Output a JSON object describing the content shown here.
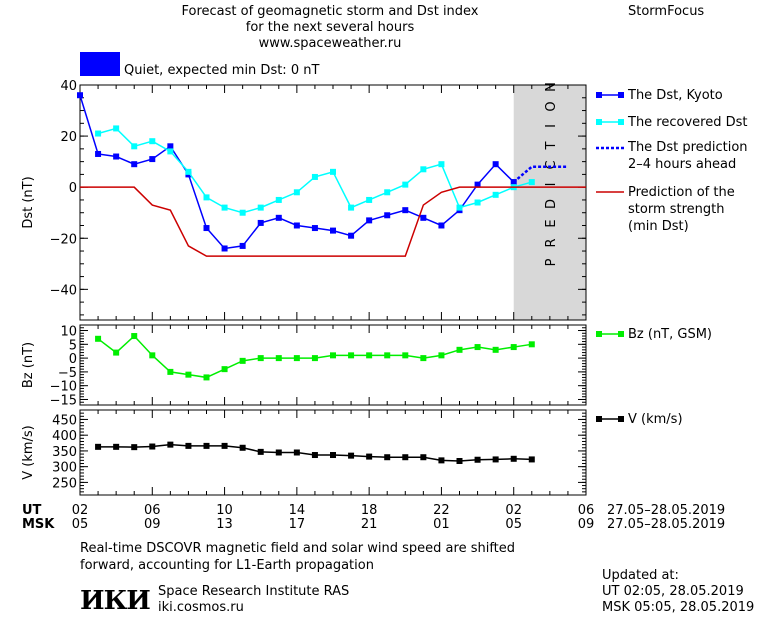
{
  "header": {
    "title_line1": "Forecast of geomagnetic storm and Dst index",
    "title_line2": "for the next several hours",
    "url": "www.spaceweather.ru",
    "brand": "StormFocus",
    "status_label": "Quiet, expected min Dst: 0 nT",
    "status_color": "#0000ff"
  },
  "prediction_label": "PREDICTION",
  "legend": {
    "dst_kyoto": "The Dst, Kyoto",
    "recovered": "The recovered Dst",
    "prediction_1": "The Dst prediction",
    "prediction_2": "2–4 hours ahead",
    "storm_1": "Prediction of the",
    "storm_2": "storm strength",
    "storm_3": "(min Dst)",
    "bz": "Bz (nT, GSM)",
    "v": "V (km/s)"
  },
  "axes": {
    "ut_label": "UT",
    "msk_label": "MSK",
    "ut_ticks": [
      "02",
      "06",
      "10",
      "14",
      "18",
      "22",
      "02",
      "06"
    ],
    "msk_ticks": [
      "05",
      "09",
      "13",
      "17",
      "21",
      "01",
      "05",
      "09"
    ],
    "date_range": "27.05–28.05.2019"
  },
  "footer": {
    "note_line1": "Real-time DSCOVR magnetic field and solar wind speed are shifted",
    "note_line2": "forward, accounting for L1-Earth propagation",
    "logo_text": "ИКИ",
    "institute": "Space Research Institute RAS",
    "site": "iki.cosmos.ru",
    "updated_label": "Updated at:",
    "ut_time": "UT   02:05, 28.05.2019",
    "msk_time": "MSK 05:05, 28.05.2019"
  },
  "chart_data": [
    {
      "type": "line",
      "ylabel": "Dst (nT)",
      "ylim": [
        -52,
        40
      ],
      "yticks": [
        -40,
        -20,
        0,
        20,
        40
      ],
      "x_unit": "hours from 02 UT 27.05.2019",
      "xlim": [
        0,
        28
      ],
      "prediction_region": [
        24,
        28
      ],
      "series": [
        {
          "name": "The Dst, Kyoto",
          "color": "#0000ff",
          "x": [
            0,
            1,
            2,
            3,
            4,
            5,
            6,
            7,
            8,
            9,
            10,
            11,
            12,
            13,
            14,
            15,
            16,
            17,
            18,
            19,
            20,
            21,
            22,
            23,
            24
          ],
          "y": [
            36,
            13,
            12,
            9,
            11,
            16,
            5,
            -16,
            -24,
            -23,
            -14,
            -12,
            -15,
            -16,
            -17,
            -19,
            -13,
            -11,
            -9,
            -12,
            -15,
            -9,
            1,
            9,
            2
          ]
        },
        {
          "name": "The recovered Dst",
          "color": "#00ffff",
          "x": [
            1,
            2,
            3,
            4,
            5,
            6,
            7,
            8,
            9,
            10,
            11,
            12,
            13,
            14,
            15,
            16,
            17,
            18,
            19,
            20,
            21,
            22,
            23,
            24,
            25
          ],
          "y": [
            21,
            23,
            16,
            18,
            14,
            6,
            -4,
            -8,
            -10,
            -8,
            -5,
            -2,
            4,
            6,
            -8,
            -5,
            -2,
            1,
            7,
            9,
            -8,
            -6,
            -3,
            0,
            2
          ]
        },
        {
          "name": "The Dst prediction 2–4 hours ahead",
          "color": "#0000ff",
          "x": [
            24,
            25,
            26,
            27
          ],
          "y": [
            2,
            8,
            8,
            8
          ]
        },
        {
          "name": "Prediction of the storm strength (min Dst)",
          "color": "#cc0000",
          "x": [
            0,
            1,
            2,
            3,
            4,
            5,
            6,
            7,
            8,
            9,
            10,
            11,
            12,
            13,
            14,
            15,
            16,
            17,
            18,
            19,
            20,
            21,
            22,
            23,
            24,
            25,
            26,
            27,
            28
          ],
          "y": [
            0,
            0,
            0,
            0,
            -7,
            -9,
            -23,
            -27,
            -27,
            -27,
            -27,
            -27,
            -27,
            -27,
            -27,
            -27,
            -27,
            -27,
            -27,
            -7,
            -2,
            0,
            0,
            0,
            0,
            0,
            0,
            0,
            0
          ]
        }
      ]
    },
    {
      "type": "line",
      "ylabel": "Bz (nT)",
      "ylim": [
        -17,
        12
      ],
      "yticks": [
        10,
        5,
        0,
        -5,
        -10,
        -15
      ],
      "xlim": [
        0,
        28
      ],
      "series": [
        {
          "name": "Bz (nT, GSM)",
          "color": "#00ee00",
          "x": [
            1,
            2,
            3,
            4,
            5,
            6,
            7,
            8,
            9,
            10,
            11,
            12,
            13,
            14,
            15,
            16,
            17,
            18,
            19,
            20,
            21,
            22,
            23,
            24,
            25
          ],
          "y": [
            7,
            2,
            8,
            1,
            -5,
            -6,
            -7,
            -4,
            -1,
            0,
            0,
            0,
            0,
            1,
            1,
            1,
            1,
            1,
            0,
            1,
            3,
            4,
            3,
            4,
            5
          ]
        }
      ]
    },
    {
      "type": "line",
      "ylabel": "V (km/s)",
      "ylim": [
        210,
        480
      ],
      "yticks": [
        450,
        400,
        350,
        300,
        250
      ],
      "xlim": [
        0,
        28
      ],
      "series": [
        {
          "name": "V (km/s)",
          "color": "#000000",
          "x": [
            1,
            2,
            3,
            4,
            5,
            6,
            7,
            8,
            9,
            10,
            11,
            12,
            13,
            14,
            15,
            16,
            17,
            18,
            19,
            20,
            21,
            22,
            23,
            24,
            25
          ],
          "y": [
            363,
            363,
            362,
            364,
            370,
            366,
            366,
            366,
            360,
            347,
            345,
            345,
            337,
            337,
            335,
            332,
            330,
            330,
            330,
            320,
            318,
            322,
            323,
            325,
            323
          ]
        }
      ]
    }
  ]
}
